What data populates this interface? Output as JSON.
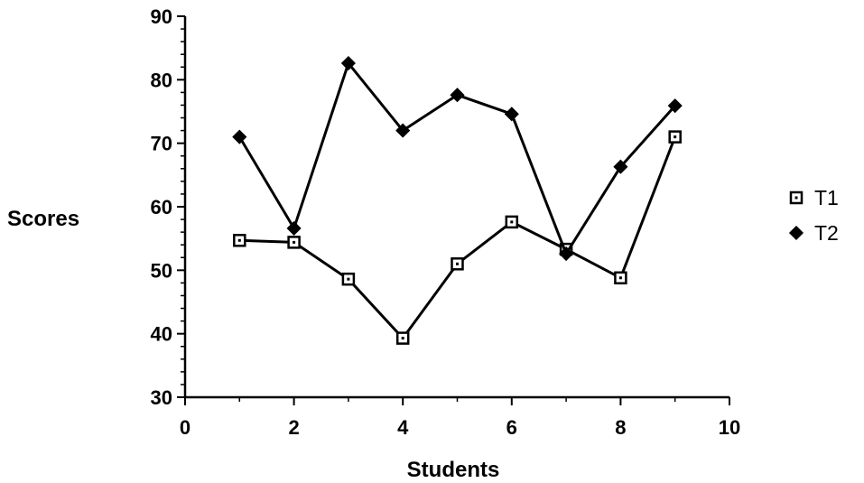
{
  "chart_data": {
    "type": "line",
    "title": "",
    "xlabel": "Students",
    "ylabel": "Scores",
    "xlim": [
      0,
      10
    ],
    "ylim": [
      30,
      90
    ],
    "x_ticks": [
      0,
      2,
      4,
      6,
      8,
      10
    ],
    "y_ticks": [
      30,
      40,
      50,
      60,
      70,
      80,
      90
    ],
    "grid": false,
    "legend_position": "right",
    "x": [
      1,
      2,
      3,
      4,
      5,
      6,
      7,
      8,
      9
    ],
    "series": [
      {
        "name": "T1",
        "marker": "square-open",
        "color": "#000000",
        "values": [
          54.7,
          54.4,
          48.6,
          39.3,
          51.0,
          57.6,
          53.3,
          48.8,
          71.0
        ]
      },
      {
        "name": "T2",
        "marker": "diamond-filled",
        "color": "#000000",
        "values": [
          71.0,
          56.6,
          82.6,
          72.0,
          77.6,
          74.6,
          52.6,
          66.3,
          75.9
        ]
      }
    ]
  }
}
